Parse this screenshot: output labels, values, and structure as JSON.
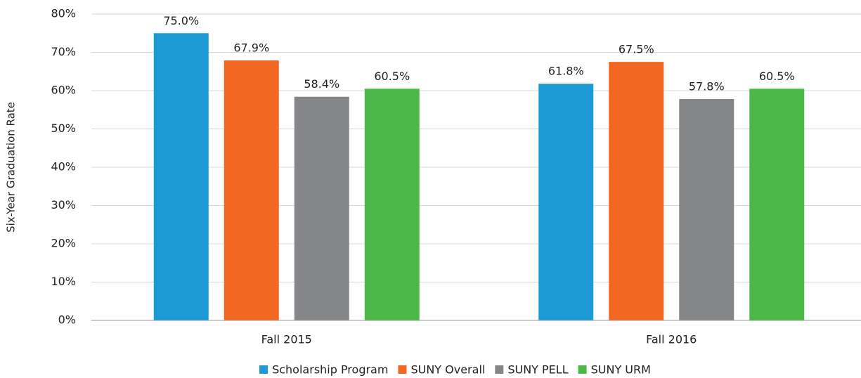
{
  "chart_data": {
    "type": "bar",
    "y_axis_label": "Six-Year Graduation Rate",
    "categories": [
      "Fall 2015",
      "Fall 2016"
    ],
    "series": [
      {
        "name": "Scholarship Program",
        "color": "#1b9ad6",
        "values": [
          75.0,
          61.8
        ],
        "value_labels": [
          "75.0%",
          "61.8%"
        ]
      },
      {
        "name": "SUNY Overall",
        "color": "#f26722",
        "values": [
          67.9,
          67.5
        ],
        "value_labels": [
          "67.9%",
          "67.5%"
        ]
      },
      {
        "name": "SUNY PELL",
        "color": "#858687",
        "values": [
          58.4,
          57.8
        ],
        "value_labels": [
          "58.4%",
          "57.8%"
        ]
      },
      {
        "name": "SUNY URM",
        "color": "#4cb848",
        "values": [
          60.5,
          60.5
        ],
        "value_labels": [
          "60.5%",
          "60.5%"
        ]
      }
    ],
    "ylim": [
      0,
      80
    ],
    "yticks": [
      {
        "value": 0,
        "label": "0%"
      },
      {
        "value": 10,
        "label": "10%"
      },
      {
        "value": 20,
        "label": "20%"
      },
      {
        "value": 30,
        "label": "30%"
      },
      {
        "value": 40,
        "label": "40%"
      },
      {
        "value": 50,
        "label": "50%"
      },
      {
        "value": 60,
        "label": "60%"
      },
      {
        "value": 70,
        "label": "70%"
      },
      {
        "value": 80,
        "label": "80%"
      }
    ],
    "grid": true,
    "legend": "bottom"
  }
}
